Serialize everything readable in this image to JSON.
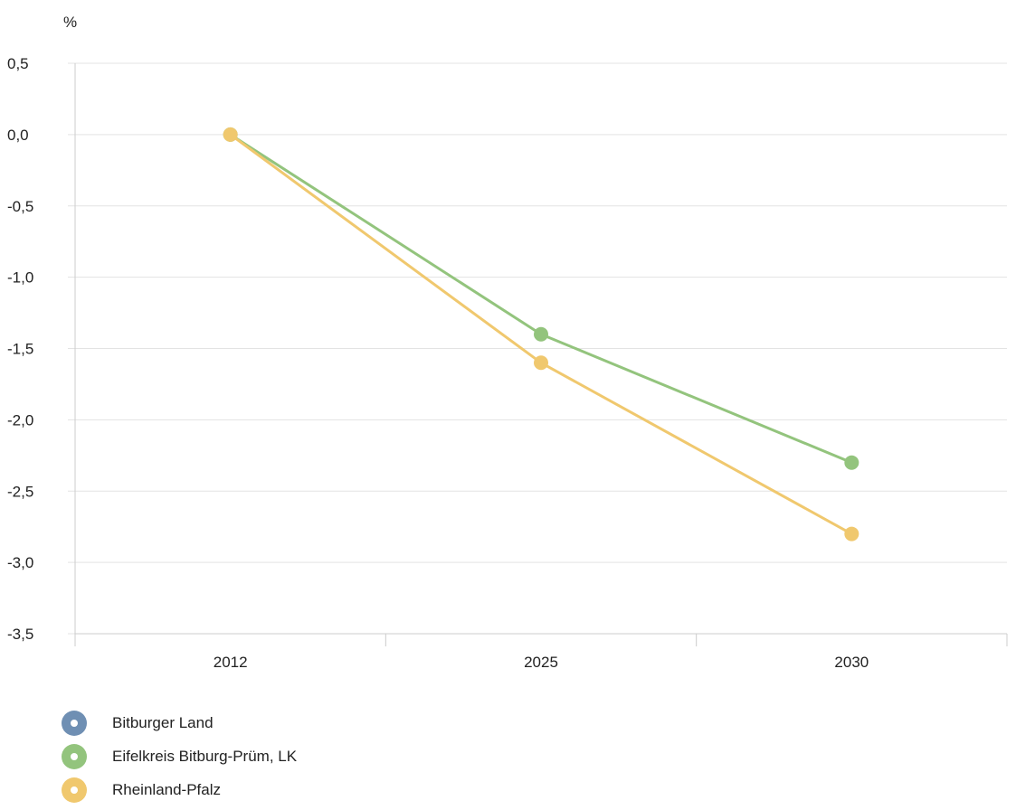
{
  "chart_data": {
    "type": "line",
    "ylabel": "%",
    "xlabel": "",
    "categories": [
      "2012",
      "2025",
      "2030"
    ],
    "ylim": [
      -3.5,
      0.5
    ],
    "yticks": [
      0.5,
      0.0,
      -0.5,
      -1.0,
      -1.5,
      -2.0,
      -2.5,
      -3.0,
      -3.5
    ],
    "ytick_labels": [
      "0,5",
      "0,0",
      "-0,5",
      "-1,0",
      "-1,5",
      "-2,0",
      "-2,5",
      "-3,0",
      "-3,5"
    ],
    "grid": true,
    "legend_position": "bottom-left",
    "series": [
      {
        "name": "Bitburger Land",
        "color": "#6f8fb3",
        "values": [
          null,
          null,
          null
        ]
      },
      {
        "name": "Eifelkreis Bitburg-Prüm, LK",
        "color": "#93c47d",
        "values": [
          0.0,
          -1.4,
          -2.3
        ]
      },
      {
        "name": "Rheinland-Pfalz",
        "color": "#f0c86e",
        "values": [
          0.0,
          -1.6,
          -2.8
        ]
      }
    ]
  }
}
